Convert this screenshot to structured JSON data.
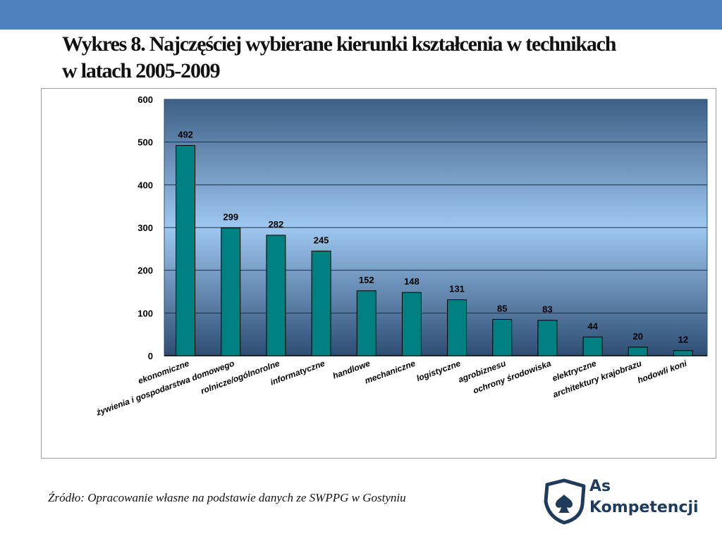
{
  "title": "Wykres 8. Najczęściej wybierane kierunki kształcenia w technikach w latach 2005-2009",
  "source": "Źródło: Opracowanie własne na podstawie danych ze SWPPG w Gostyniu",
  "logo": {
    "line1": "As",
    "line2": "Kompetencji",
    "icon": "spade-icon"
  },
  "colors": {
    "header_bar": "#4f81bd",
    "bar_fill": "#008080",
    "plot_top": "#3e5f86",
    "plot_middle": "#9ec8f0",
    "plot_bottom": "#2e4d73"
  },
  "chart_data": {
    "type": "bar",
    "categories": [
      "ekonomiczne",
      "żywienia i gospodarstwa domowego",
      "rolnicze/ogólnorolne",
      "informatyczne",
      "handlowe",
      "mechaniczne",
      "logistyczne",
      "agrobiznesu",
      "ochrony środowiska",
      "elektryczne",
      "architektury krajobrazu",
      "hodowli koni"
    ],
    "values": [
      492,
      299,
      282,
      245,
      152,
      148,
      131,
      85,
      83,
      44,
      20,
      12
    ],
    "yticks": [
      "0",
      "100",
      "200",
      "300",
      "400",
      "500",
      "600"
    ],
    "ylim": [
      0,
      600
    ],
    "grid": true,
    "legend": "none"
  }
}
